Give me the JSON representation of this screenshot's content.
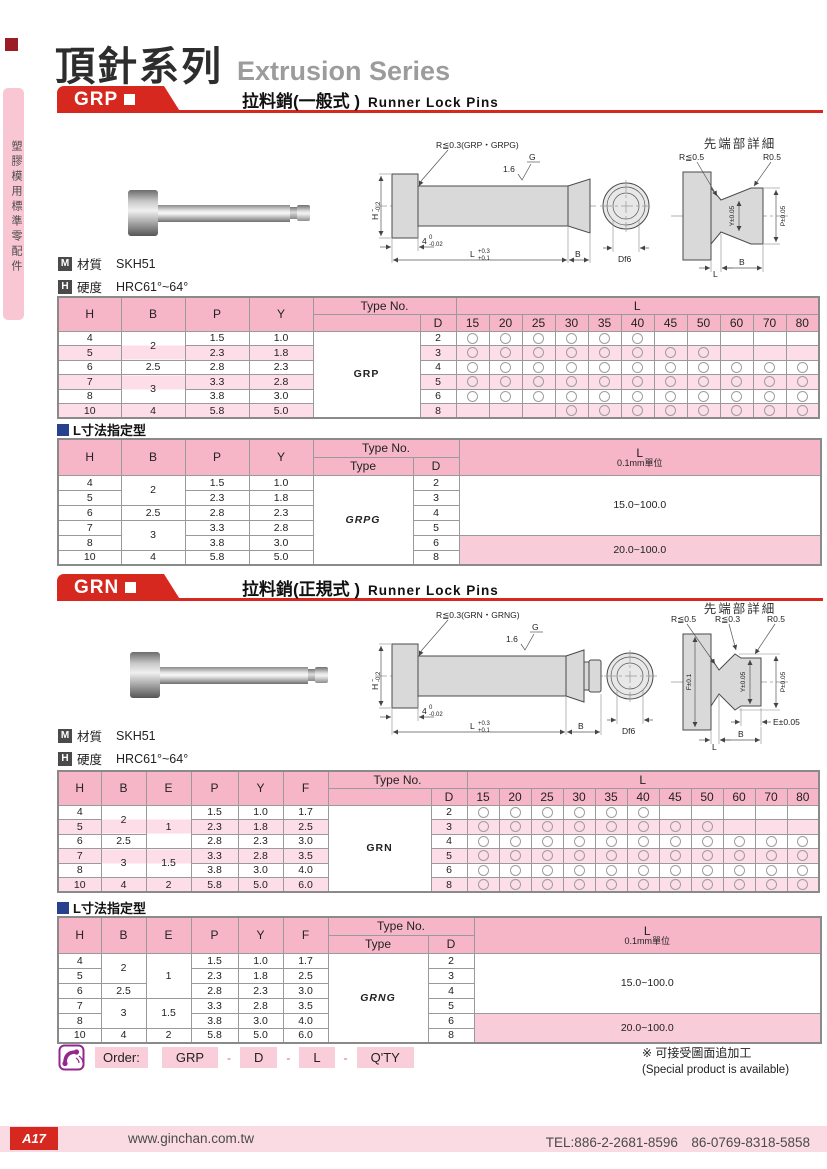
{
  "page": {
    "title_zh": "頂針系列",
    "title_en": "Extrusion Series",
    "side_tab": "塑膠模用標準零配件"
  },
  "grp": {
    "code": "GRP",
    "subtitle_zh": "拉料銷(一般式 )",
    "subtitle_en": "Runner Lock Pins",
    "material_badge": "M",
    "material_label": "材質",
    "material_value": "SKH51",
    "hardness_badge": "H",
    "hardness_label": "硬度",
    "hardness_value": "HRC61°~64°",
    "drawing": {
      "r_note": "R≦0.3(GRP・GRPG)",
      "finish_value": "1.6",
      "finish_grade": "G",
      "h_label": "H",
      "h_tol_top": "0",
      "h_tol_bottom": "-0.2",
      "head_width": "4",
      "head_tol_top": "0",
      "head_tol_bottom": "-0.02",
      "l_label": "L",
      "l_tol_top": "+0.3",
      "l_tol_bottom": "+0.1",
      "b_label": "B",
      "shaft_dia": "Df6"
    },
    "tip": {
      "title": "先端部詳細",
      "r1": "R≦0.5",
      "r2": "R0.5",
      "y": "Y±0.05",
      "p": "P±0.05",
      "l": "L",
      "b": "B"
    }
  },
  "grn": {
    "code": "GRN",
    "subtitle_zh": "拉料銷(正規式 )",
    "subtitle_en": "Runner Lock Pins",
    "material_badge": "M",
    "material_label": "材質",
    "material_value": "SKH51",
    "hardness_badge": "H",
    "hardness_label": "硬度",
    "hardness_value": "HRC61°~64°",
    "drawing": {
      "r_note": "R≦0.3(GRN・GRNG)",
      "finish_value": "1.6",
      "finish_grade": "G",
      "h_label": "H",
      "h_tol_top": "0",
      "h_tol_bottom": "-0.2",
      "head_width": "4",
      "head_tol_top": "0",
      "head_tol_bottom": "-0.02",
      "l_label": "L",
      "l_tol_top": "+0.3",
      "l_tol_bottom": "+0.1",
      "b_label": "B",
      "shaft_dia": "Df6"
    },
    "tip": {
      "title": "先端部詳細",
      "r1": "R≦0.5",
      "r2": "R≦0.3",
      "r3": "R0.5",
      "f": "F±0.1",
      "y": "Y±0.05",
      "p": "P±0.05",
      "e": "E±0.05",
      "l": "L",
      "b": "B"
    }
  },
  "grp_table": {
    "dim_headers": [
      "H",
      "B",
      "P",
      "Y"
    ],
    "type_no_label": "Type No.",
    "type_value": "GRP",
    "d_label": "D",
    "l_label": "L",
    "l_sizes": [
      "15",
      "20",
      "25",
      "30",
      "35",
      "40",
      "45",
      "50",
      "60",
      "70",
      "80"
    ],
    "rows": [
      {
        "cells": [
          {
            "v": "4"
          },
          {
            "v": "2",
            "rs": 2
          },
          {
            "v": "1.5"
          },
          {
            "v": "1.0"
          }
        ],
        "d": "2",
        "avail": [
          1,
          1,
          1,
          1,
          1,
          1,
          0,
          0,
          0,
          0,
          0
        ]
      },
      {
        "cells": [
          {
            "v": "5"
          },
          null,
          {
            "v": "2.3"
          },
          {
            "v": "1.8"
          }
        ],
        "d": "3",
        "avail": [
          1,
          1,
          1,
          1,
          1,
          1,
          1,
          1,
          0,
          0,
          0
        ]
      },
      {
        "cells": [
          {
            "v": "6"
          },
          {
            "v": "2.5"
          },
          {
            "v": "2.8"
          },
          {
            "v": "2.3"
          }
        ],
        "d": "4",
        "avail": [
          1,
          1,
          1,
          1,
          1,
          1,
          1,
          1,
          1,
          1,
          1
        ]
      },
      {
        "cells": [
          {
            "v": "7"
          },
          {
            "v": "3",
            "rs": 2
          },
          {
            "v": "3.3"
          },
          {
            "v": "2.8"
          }
        ],
        "d": "5",
        "avail": [
          1,
          1,
          1,
          1,
          1,
          1,
          1,
          1,
          1,
          1,
          1
        ]
      },
      {
        "cells": [
          {
            "v": "8"
          },
          null,
          {
            "v": "3.8"
          },
          {
            "v": "3.0"
          }
        ],
        "d": "6",
        "avail": [
          1,
          1,
          1,
          1,
          1,
          1,
          1,
          1,
          1,
          1,
          1
        ]
      },
      {
        "cells": [
          {
            "v": "10"
          },
          {
            "v": "4"
          },
          {
            "v": "5.8"
          },
          {
            "v": "5.0"
          }
        ],
        "d": "8",
        "avail": [
          0,
          0,
          0,
          1,
          1,
          1,
          1,
          1,
          1,
          1,
          1
        ]
      }
    ]
  },
  "grpg_table": {
    "section_label": "L寸法指定型",
    "dim_headers": [
      "H",
      "B",
      "P",
      "Y"
    ],
    "type_no_label": "Type No.",
    "type_label": "Type",
    "type_value": "GRPG",
    "d_label": "D",
    "l_label": "L",
    "l_unit": "0.1mm單位",
    "rows": [
      {
        "cells": [
          {
            "v": "4"
          },
          {
            "v": "2",
            "rs": 2
          },
          {
            "v": "1.5"
          },
          {
            "v": "1.0"
          }
        ],
        "d": "2"
      },
      {
        "cells": [
          {
            "v": "5"
          },
          null,
          {
            "v": "2.3"
          },
          {
            "v": "1.8"
          }
        ],
        "d": "3"
      },
      {
        "cells": [
          {
            "v": "6"
          },
          {
            "v": "2.5"
          },
          {
            "v": "2.8"
          },
          {
            "v": "2.3"
          }
        ],
        "d": "4"
      },
      {
        "cells": [
          {
            "v": "7"
          },
          {
            "v": "3",
            "rs": 2
          },
          {
            "v": "3.3"
          },
          {
            "v": "2.8"
          }
        ],
        "d": "5"
      },
      {
        "cells": [
          {
            "v": "8"
          },
          null,
          {
            "v": "3.8"
          },
          {
            "v": "3.0"
          }
        ],
        "d": "6"
      },
      {
        "cells": [
          {
            "v": "10"
          },
          {
            "v": "4"
          },
          {
            "v": "5.8"
          },
          {
            "v": "5.0"
          }
        ],
        "d": "8"
      }
    ],
    "l_ranges": [
      {
        "text": "15.0~100.0",
        "span": 4,
        "pink": false
      },
      {
        "text": "20.0~100.0",
        "span": 2,
        "pink": true
      }
    ]
  },
  "grn_table": {
    "dim_headers": [
      "H",
      "B",
      "E",
      "P",
      "Y",
      "F"
    ],
    "type_no_label": "Type No.",
    "type_value": "GRN",
    "d_label": "D",
    "l_label": "L",
    "l_sizes": [
      "15",
      "20",
      "25",
      "30",
      "35",
      "40",
      "45",
      "50",
      "60",
      "70",
      "80"
    ],
    "rows": [
      {
        "cells": [
          {
            "v": "4"
          },
          {
            "v": "2",
            "rs": 2
          },
          {
            "v": "1",
            "rs": 3
          },
          {
            "v": "1.5"
          },
          {
            "v": "1.0"
          },
          {
            "v": "1.7"
          }
        ],
        "d": "2",
        "avail": [
          1,
          1,
          1,
          1,
          1,
          1,
          0,
          0,
          0,
          0,
          0
        ]
      },
      {
        "cells": [
          {
            "v": "5"
          },
          null,
          null,
          {
            "v": "2.3"
          },
          {
            "v": "1.8"
          },
          {
            "v": "2.5"
          }
        ],
        "d": "3",
        "avail": [
          1,
          1,
          1,
          1,
          1,
          1,
          1,
          1,
          0,
          0,
          0
        ]
      },
      {
        "cells": [
          {
            "v": "6"
          },
          {
            "v": "2.5"
          },
          null,
          {
            "v": "2.8"
          },
          {
            "v": "2.3"
          },
          {
            "v": "3.0"
          }
        ],
        "d": "4",
        "avail": [
          1,
          1,
          1,
          1,
          1,
          1,
          1,
          1,
          1,
          1,
          1
        ]
      },
      {
        "cells": [
          {
            "v": "7"
          },
          {
            "v": "3",
            "rs": 2
          },
          {
            "v": "1.5",
            "rs": 2
          },
          {
            "v": "3.3"
          },
          {
            "v": "2.8"
          },
          {
            "v": "3.5"
          }
        ],
        "d": "5",
        "avail": [
          1,
          1,
          1,
          1,
          1,
          1,
          1,
          1,
          1,
          1,
          1
        ]
      },
      {
        "cells": [
          {
            "v": "8"
          },
          null,
          null,
          {
            "v": "3.8"
          },
          {
            "v": "3.0"
          },
          {
            "v": "4.0"
          }
        ],
        "d": "6",
        "avail": [
          1,
          1,
          1,
          1,
          1,
          1,
          1,
          1,
          1,
          1,
          1
        ]
      },
      {
        "cells": [
          {
            "v": "10"
          },
          {
            "v": "4"
          },
          {
            "v": "2"
          },
          {
            "v": "5.8"
          },
          {
            "v": "5.0"
          },
          {
            "v": "6.0"
          }
        ],
        "d": "8",
        "avail": [
          1,
          1,
          1,
          1,
          1,
          1,
          1,
          1,
          1,
          1,
          1
        ]
      }
    ]
  },
  "grng_table": {
    "section_label": "L寸法指定型",
    "dim_headers": [
      "H",
      "B",
      "E",
      "P",
      "Y",
      "F"
    ],
    "type_no_label": "Type No.",
    "type_label": "Type",
    "type_value": "GRNG",
    "d_label": "D",
    "l_label": "L",
    "l_unit": "0.1mm單位",
    "rows": [
      {
        "cells": [
          {
            "v": "4"
          },
          {
            "v": "2",
            "rs": 2
          },
          {
            "v": "1",
            "rs": 3
          },
          {
            "v": "1.5"
          },
          {
            "v": "1.0"
          },
          {
            "v": "1.7"
          }
        ],
        "d": "2"
      },
      {
        "cells": [
          {
            "v": "5"
          },
          null,
          null,
          {
            "v": "2.3"
          },
          {
            "v": "1.8"
          },
          {
            "v": "2.5"
          }
        ],
        "d": "3"
      },
      {
        "cells": [
          {
            "v": "6"
          },
          {
            "v": "2.5"
          },
          null,
          {
            "v": "2.8"
          },
          {
            "v": "2.3"
          },
          {
            "v": "3.0"
          }
        ],
        "d": "4"
      },
      {
        "cells": [
          {
            "v": "7"
          },
          {
            "v": "3",
            "rs": 2
          },
          {
            "v": "1.5",
            "rs": 2
          },
          {
            "v": "3.3"
          },
          {
            "v": "2.8"
          },
          {
            "v": "3.5"
          }
        ],
        "d": "5"
      },
      {
        "cells": [
          {
            "v": "8"
          },
          null,
          null,
          {
            "v": "3.8"
          },
          {
            "v": "3.0"
          },
          {
            "v": "4.0"
          }
        ],
        "d": "6"
      },
      {
        "cells": [
          {
            "v": "10"
          },
          {
            "v": "4"
          },
          {
            "v": "2"
          },
          {
            "v": "5.8"
          },
          {
            "v": "5.0"
          },
          {
            "v": "6.0"
          }
        ],
        "d": "8"
      }
    ],
    "l_ranges": [
      {
        "text": "15.0~100.0",
        "span": 4,
        "pink": false
      },
      {
        "text": "20.0~100.0",
        "span": 2,
        "pink": true
      }
    ]
  },
  "order": {
    "label": "Order:",
    "parts": [
      "GRP",
      "D",
      "L",
      "Q'TY"
    ],
    "separator": "-",
    "note_zh": "※ 可接受圖面追加工",
    "note_en": "(Special product is available)"
  },
  "footer": {
    "page_no": "A17",
    "website": "www.ginchan.com.tw",
    "tel": "TEL:886-2-2681-8596　86-0769-8318-5858"
  },
  "colors": {
    "accent_red": "#d7281f",
    "header_pink": "#f6b6c7",
    "stripe_pink": "#fcdde8"
  }
}
